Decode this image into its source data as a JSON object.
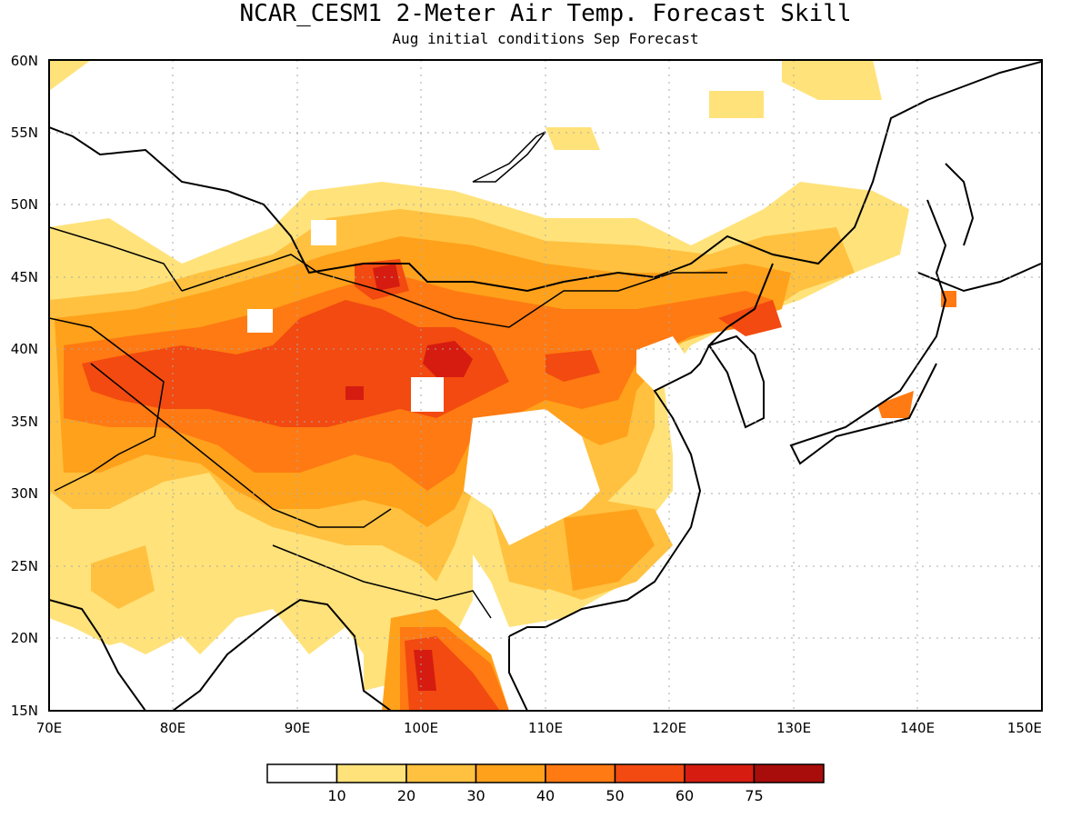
{
  "title": "NCAR_CESM1 2-Meter Air Temp. Forecast Skill",
  "subtitle": "Aug initial conditions  Sep Forecast",
  "map": {
    "lon_range": [
      70,
      150
    ],
    "lat_range": [
      15,
      60
    ],
    "lon_ticks": [
      "70E",
      "80E",
      "90E",
      "100E",
      "110E",
      "120E",
      "130E",
      "140E",
      "150E"
    ],
    "lat_ticks": [
      "15N",
      "20N",
      "25N",
      "30N",
      "35N",
      "40N",
      "45N",
      "50N",
      "55N",
      "60N"
    ]
  },
  "colorbar": {
    "levels": [
      "10",
      "20",
      "30",
      "40",
      "50",
      "60",
      "75"
    ],
    "colors": [
      "#ffffff",
      "#ffe27a",
      "#ffc13f",
      "#ffa11b",
      "#ff7a12",
      "#f24a10",
      "#d61c10",
      "#a80d0b"
    ]
  }
}
